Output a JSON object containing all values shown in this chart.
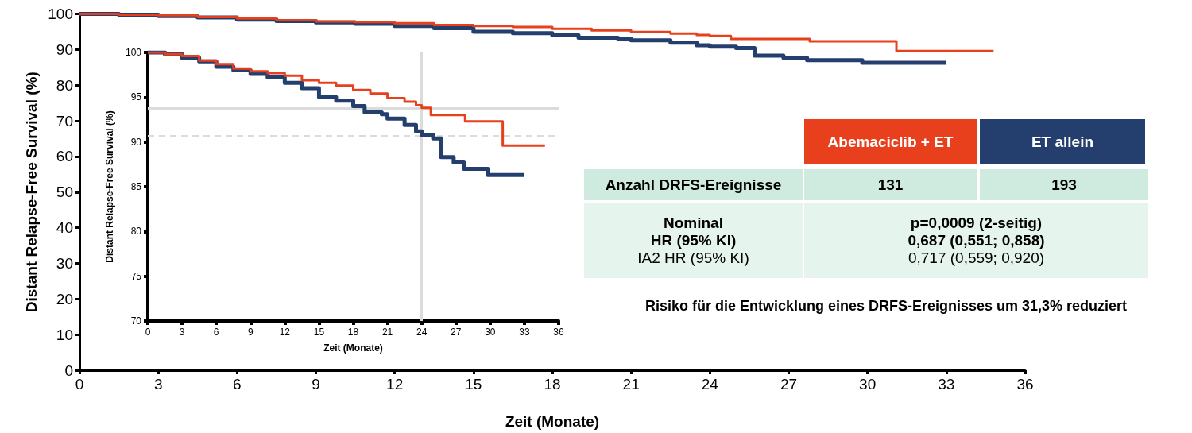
{
  "chart_data": [
    {
      "type": "step",
      "xlabel": "Zeit (Monate)",
      "ylabel": "Distant Relapse-Free Survival (%)",
      "xlim": [
        0,
        36
      ],
      "xticks": [
        0,
        3,
        6,
        9,
        12,
        15,
        18,
        21,
        24,
        27,
        30,
        33,
        36
      ],
      "ylim": [
        0,
        100
      ],
      "yticks": [
        0,
        10,
        20,
        30,
        40,
        50,
        60,
        70,
        80,
        90,
        100
      ],
      "grid": false,
      "line_style": "solid",
      "marker": "none",
      "series": [
        {
          "name": "Abemaciclib + ET",
          "color": "#e8401c",
          "x": [
            0,
            1.5,
            3,
            4.5,
            6,
            7.5,
            9,
            10.5,
            12,
            13.5,
            15,
            16.5,
            18,
            19.5,
            21,
            22.5,
            23.5,
            24,
            24.8,
            27.8,
            31.1,
            34.8
          ],
          "values": [
            100,
            99.8,
            99.6,
            99.1,
            98.7,
            98.2,
            97.9,
            97.7,
            97.4,
            96.9,
            96.6,
            96.3,
            95.8,
            95.4,
            94.9,
            94.5,
            94.1,
            93.8,
            93.0,
            92.3,
            89.6,
            89.6
          ]
        },
        {
          "name": "ET allein",
          "color": "#243f6e",
          "x": [
            0,
            1.5,
            3,
            4.5,
            6,
            7.5,
            9,
            10.5,
            12,
            13.5,
            15,
            16.5,
            18,
            19,
            20.5,
            21,
            22.5,
            23.5,
            24,
            25,
            25.7,
            26.8,
            27.7,
            29.8,
            33
          ],
          "values": [
            100,
            99.8,
            99.4,
            99.0,
            98.4,
            98.0,
            97.6,
            97.2,
            96.6,
            96.0,
            95.0,
            94.6,
            94.0,
            93.3,
            93.1,
            92.6,
            91.9,
            91.2,
            90.8,
            90.4,
            88.3,
            87.7,
            87.0,
            86.3,
            86.3
          ]
        }
      ]
    },
    {
      "type": "step",
      "xlabel": "Zeit (Monate)",
      "ylabel": "Distant Relapse-Free Survival (%)",
      "xlim": [
        0,
        36
      ],
      "xticks": [
        0,
        3,
        6,
        9,
        12,
        15,
        18,
        21,
        24,
        27,
        30,
        33,
        36
      ],
      "ylim": [
        70,
        100
      ],
      "yticks": [
        70,
        75,
        80,
        85,
        90,
        95,
        100
      ],
      "grid": false,
      "line_style": "solid",
      "marker": "none",
      "ref_lines": [
        {
          "axis": "y",
          "value": 93.8,
          "color": "#d9dcdb",
          "line_style": "solid"
        },
        {
          "axis": "y",
          "value": 90.7,
          "color": "#d9dcdb",
          "line_style": "dashed"
        },
        {
          "axis": "x",
          "value": 24,
          "color": "#d9dcdb",
          "line_style": "solid"
        }
      ],
      "series": [
        {
          "color": "#e8401c",
          "x": [
            0,
            1.5,
            3,
            4.5,
            6,
            7.5,
            9,
            10.5,
            12,
            13.5,
            15,
            16.5,
            18,
            19.5,
            21,
            22.5,
            23.5,
            24,
            24.8,
            27.8,
            31.1,
            34.8
          ],
          "values": [
            100,
            99.8,
            99.6,
            99.1,
            98.7,
            98.2,
            97.9,
            97.7,
            97.4,
            96.9,
            96.6,
            96.3,
            95.8,
            95.4,
            94.9,
            94.5,
            94.1,
            93.8,
            93.0,
            92.3,
            89.6,
            89.6
          ]
        },
        {
          "color": "#243f6e",
          "x": [
            0,
            1.5,
            3,
            4.5,
            6,
            7.5,
            9,
            10.5,
            12,
            13.5,
            15,
            16.5,
            18,
            19,
            20.5,
            21,
            22.5,
            23.5,
            24,
            25,
            25.7,
            26.8,
            27.7,
            29.8,
            33
          ],
          "values": [
            100,
            99.8,
            99.4,
            99.0,
            98.4,
            98.0,
            97.6,
            97.2,
            96.6,
            96.0,
            95.0,
            94.6,
            94.0,
            93.3,
            93.1,
            92.6,
            91.9,
            91.2,
            90.8,
            90.4,
            88.3,
            87.7,
            87.0,
            86.3,
            86.3
          ]
        }
      ]
    },
    {
      "type": "other",
      "annotations": [
        "Anzahl DRFS-Ereignisse",
        "131",
        "193",
        "Nominal",
        "HR (95% KI)",
        "IA2 HR (95% KI)",
        "p=0,0009 (2-seitig)",
        "0,687 (0,551; 0,858)",
        "0,717 (0,559; 0,920)",
        "Risiko für die Entwicklung eines DRFS-Ereignisses um 31,3% reduziert"
      ]
    }
  ]
}
